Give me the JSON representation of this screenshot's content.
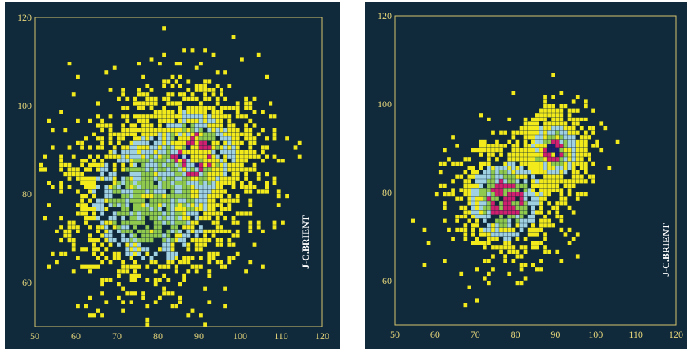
{
  "colors": {
    "background": "#102a3c",
    "frame": "#d8c46a",
    "tick_label": "#e8d77a",
    "credit": "#ffffff",
    "density_levels": [
      "#f2ea1a",
      "#9fd1e3",
      "#8fc94e",
      "#d01f6e",
      "#1a1f6e"
    ]
  },
  "chart_data": [
    {
      "type": "heatmap",
      "title": "",
      "xlabel": "",
      "ylabel": "",
      "xlim": [
        50,
        120
      ],
      "ylim": [
        50,
        120
      ],
      "x_ticks": [
        "50",
        "60",
        "70",
        "80",
        "90",
        "100",
        "110",
        "120"
      ],
      "y_ticks": [
        "60",
        "80",
        "100",
        "120"
      ],
      "grid": false,
      "credit": "J-C.BRIENT",
      "bin_size": 1,
      "density_levels": 5,
      "clusters": [
        {
          "center": [
            78,
            78
          ],
          "level": 2
        },
        {
          "center": [
            88,
            88
          ],
          "level": 4
        }
      ],
      "seed": 11
    },
    {
      "type": "heatmap",
      "title": "",
      "xlabel": "",
      "ylabel": "",
      "xlim": [
        50,
        120
      ],
      "ylim": [
        50,
        120
      ],
      "x_ticks": [
        "50",
        "60",
        "70",
        "80",
        "90",
        "100",
        "110",
        "120"
      ],
      "y_ticks": [
        "60",
        "80",
        "100",
        "120"
      ],
      "grid": false,
      "credit": "J-C.BRIENT",
      "bin_size": 1,
      "density_levels": 5,
      "clusters": [
        {
          "center": [
            77,
            78
          ],
          "level": 3
        },
        {
          "center": [
            89,
            89
          ],
          "level": 5
        }
      ],
      "seed": 29
    }
  ]
}
